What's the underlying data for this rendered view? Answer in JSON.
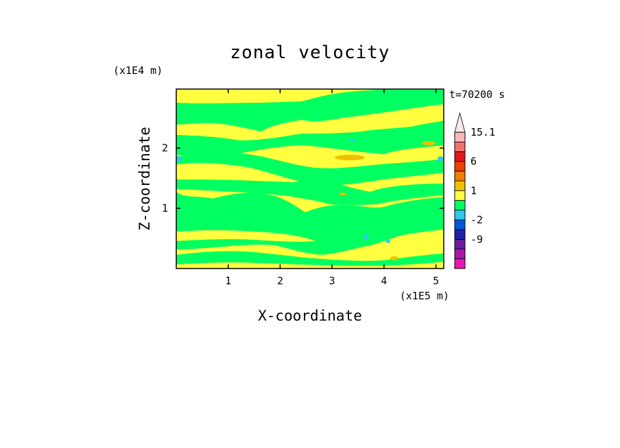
{
  "chart_data": {
    "type": "heatmap",
    "title": "zonal velocity",
    "xlabel": "X-coordinate",
    "ylabel": "Z-coordinate",
    "x_unit": "(x1E5 m)",
    "y_unit": "(x1E4 m)",
    "time_label": "t=70200 s",
    "xlim": [
      0,
      5.15
    ],
    "ylim": [
      0,
      2.98
    ],
    "x_ticks": [
      1,
      2,
      3,
      4,
      5
    ],
    "y_ticks": [
      1,
      2
    ],
    "x_tick_labels": [
      "1",
      "2",
      "3",
      "4",
      "5"
    ],
    "y_tick_labels": [
      "1",
      "2"
    ],
    "colorbar": {
      "levels": [
        -16,
        -12,
        -9,
        -6,
        -2,
        -1,
        0,
        1,
        2,
        3,
        6,
        9,
        12,
        15.1
      ],
      "colors": [
        "#e818b8",
        "#a818a8",
        "#6c1ca0",
        "#2020a8",
        "#0058d8",
        "#30c8f0",
        "#00ff60",
        "#ffff40",
        "#f0c000",
        "#f08000",
        "#f04000",
        "#e01818",
        "#f07070",
        "#f8b8b8",
        "#fce8e8"
      ],
      "tick_labels": [
        "15.1",
        "6",
        "1",
        "-2",
        "-9"
      ],
      "tick_values": [
        15.1,
        6,
        1,
        -2,
        -9
      ]
    },
    "field_summary": "alternating layers of weak positive (yellow, 0..1) and weak negative (green, -1..0) zonal velocity",
    "bands": [
      {
        "level": "0..1",
        "color": "#ffff40",
        "z_min": 0,
        "z_max": 0.07
      },
      {
        "level": "-1..0",
        "color": "#00ff60",
        "z_min": 0.07,
        "z_max": 0.55
      },
      {
        "level": "0..1",
        "color": "#ffff40",
        "z_min": 0.55,
        "z_max": 1.25
      },
      {
        "level": "-1..0",
        "color": "#00ff60",
        "z_min": 1.25,
        "z_max": 1.45
      },
      {
        "level": "0..1",
        "color": "#ffff40",
        "z_min": 1.45,
        "z_max": 1.68
      },
      {
        "level": "-1..0",
        "color": "#00ff60",
        "z_min": 1.68,
        "z_max": 1.88
      },
      {
        "level": "0..1",
        "color": "#ffff40",
        "z_min": 1.88,
        "z_max": 2.0
      },
      {
        "level": "-1..0",
        "color": "#00ff60",
        "z_min": 2.0,
        "z_max": 2.3
      },
      {
        "level": "0..1",
        "color": "#ffff40",
        "z_min": 2.3,
        "z_max": 2.55
      },
      {
        "level": "-1..0",
        "color": "#00ff60",
        "z_min": 2.55,
        "z_max": 2.8
      },
      {
        "level": "0..1",
        "color": "#ffff40",
        "z_min": 2.8,
        "z_max": 2.98
      }
    ]
  }
}
